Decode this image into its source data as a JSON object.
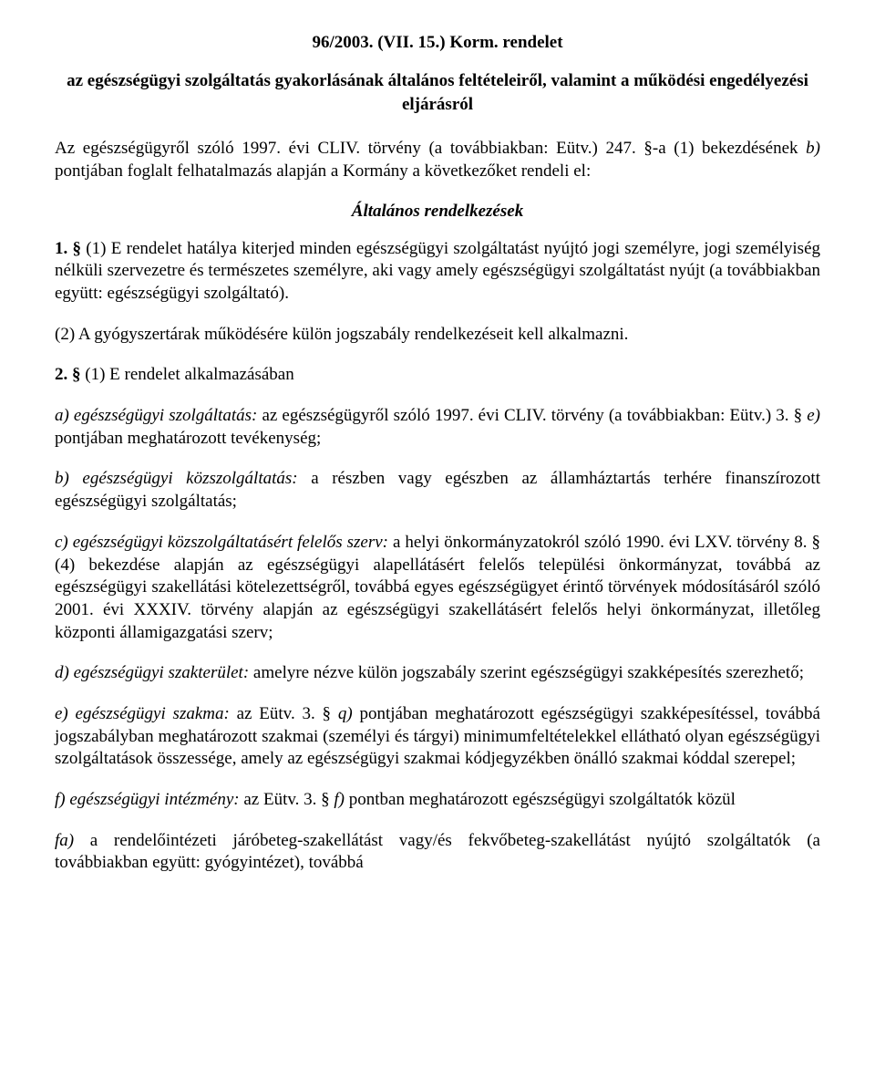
{
  "title": "96/2003. (VII. 15.) Korm. rendelet",
  "subtitle": "az egészségügyi szolgáltatás gyakorlásának általános feltételeiről, valamint a működési engedélyezési eljárásról",
  "intro_plain": "Az egészségügyről szóló 1997. évi CLIV. törvény (a továbbiakban: Eütv.) 247. §-a (1) bekezdésének ",
  "intro_italic": "b)",
  "intro_tail": " pontjában foglalt felhatalmazás alapján a Kormány a következőket rendeli el:",
  "section_heading": "Általános rendelkezések",
  "p1_lead_bold": "1. §",
  "p1_body": " (1) E rendelet hatálya kiterjed minden egészségügyi szolgáltatást nyújtó jogi személyre, jogi személyiség nélküli szervezetre és természetes személyre, aki vagy amely egészségügyi szolgáltatást nyújt (a továbbiakban együtt: egészségügyi szolgáltató).",
  "p1_2": "(2) A gyógyszertárak működésére külön jogszabály rendelkezéseit kell alkalmazni.",
  "p2_lead_bold": "2. §",
  "p2_body": " (1) E rendelet alkalmazásában",
  "a_term": "a) egészségügyi szolgáltatás:",
  "a_body1": " az egészségügyről szóló 1997. évi CLIV. törvény (a továbbiakban: Eütv.) 3. § ",
  "a_eitalic": "e)",
  "a_body2": " pontjában meghatározott tevékenység;",
  "b_term": "b) egészségügyi közszolgáltatás:",
  "b_body": " a részben vagy egészben az államháztartás terhére finanszírozott egészségügyi szolgáltatás;",
  "c_term": "c) egészségügyi közszolgáltatásért felelős szerv:",
  "c_body": " a helyi önkormányzatokról szóló 1990. évi LXV. törvény 8. § (4) bekezdése alapján az egészségügyi alapellátásért felelős települési önkormányzat, továbbá az egészségügyi szakellátási kötelezettségről, továbbá egyes egészségügyet érintő törvények módosításáról szóló 2001. évi XXXIV. törvény alapján az egészségügyi szakellátásért felelős helyi önkormányzat, illetőleg központi államigazgatási szerv;",
  "d_term": "d) egészségügyi szakterület:",
  "d_body": " amelyre nézve külön jogszabály szerint egészségügyi szakképesítés szerezhető;",
  "e_term": "e) egészségügyi szakma:",
  "e_body1": " az Eütv. 3. § ",
  "e_qitalic": "q)",
  "e_body2": " pontjában meghatározott egészségügyi szakképesítéssel, továbbá jogszabályban meghatározott szakmai (személyi és tárgyi) minimumfeltételekkel ellátható olyan egészségügyi szolgáltatások összessége, amely az egészségügyi szakmai kódjegyzékben önálló szakmai kóddal szerepel;",
  "f_term": "f) egészségügyi intézmény:",
  "f_body1": " az Eütv. 3. § ",
  "f_fitalic": "f)",
  "f_body2": " pontban meghatározott egészségügyi szolgáltatók közül",
  "fa_term": "fa)",
  "fa_body": " a rendelőintézeti járóbeteg-szakellátást vagy/és fekvőbeteg-szakellátást nyújtó szolgáltatók (a továbbiakban együtt: gyógyintézet), továbbá"
}
